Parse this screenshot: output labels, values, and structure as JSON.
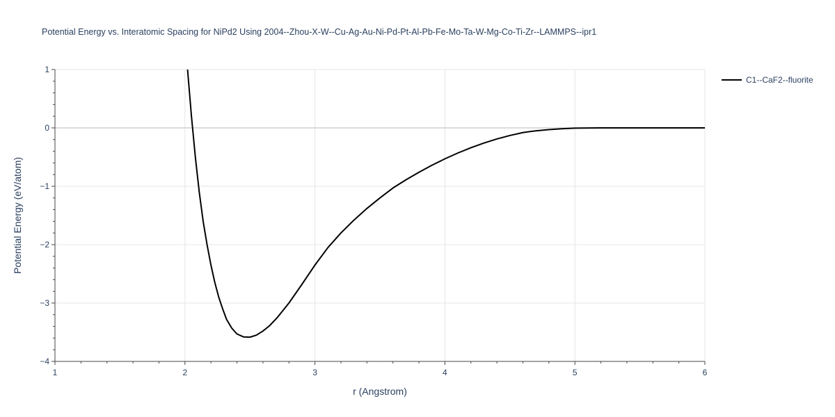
{
  "chart_data": {
    "type": "line",
    "title": "Potential Energy vs. Interatomic Spacing for NiPd2 Using 2004--Zhou-X-W--Cu-Ag-Au-Ni-Pd-Pt-Al-Pb-Fe-Mo-Ta-W-Mg-Co-Ti-Zr--LAMMPS--ipr1",
    "xlabel": "r (Angstrom)",
    "ylabel": "Potential Energy (eV/atom)",
    "xlim": [
      1,
      6
    ],
    "ylim": [
      -4,
      1
    ],
    "xticks": [
      1,
      2,
      3,
      4,
      5,
      6
    ],
    "xtick_labels": [
      "1",
      "2",
      "3",
      "4",
      "5",
      "6"
    ],
    "yticks": [
      1,
      0,
      -1,
      -2,
      -3,
      -4
    ],
    "ytick_labels": [
      "1",
      "0",
      "−1",
      "−2",
      "−3",
      "−4"
    ],
    "grid": true,
    "legend_position": "top-right",
    "series": [
      {
        "name": "C1--CaF2--fluorite",
        "color": "#000000",
        "x": [
          2.02,
          2.05,
          2.08,
          2.11,
          2.14,
          2.17,
          2.2,
          2.23,
          2.26,
          2.29,
          2.32,
          2.36,
          2.4,
          2.45,
          2.5,
          2.55,
          2.6,
          2.65,
          2.71,
          2.8,
          2.9,
          3.0,
          3.1,
          3.2,
          3.3,
          3.4,
          3.5,
          3.6,
          3.7,
          3.8,
          3.9,
          4.0,
          4.1,
          4.2,
          4.3,
          4.4,
          4.5,
          4.6,
          4.7,
          4.8,
          4.9,
          5.0,
          5.2,
          5.5,
          6.0
        ],
        "y": [
          1.0,
          0.2,
          -0.5,
          -1.1,
          -1.6,
          -2.0,
          -2.35,
          -2.65,
          -2.9,
          -3.1,
          -3.28,
          -3.43,
          -3.53,
          -3.58,
          -3.585,
          -3.55,
          -3.48,
          -3.39,
          -3.25,
          -3.0,
          -2.68,
          -2.35,
          -2.05,
          -1.8,
          -1.58,
          -1.38,
          -1.2,
          -1.03,
          -0.89,
          -0.76,
          -0.64,
          -0.53,
          -0.43,
          -0.34,
          -0.26,
          -0.19,
          -0.13,
          -0.08,
          -0.05,
          -0.03,
          -0.015,
          -0.005,
          0.0,
          0.0,
          0.0
        ]
      }
    ]
  }
}
